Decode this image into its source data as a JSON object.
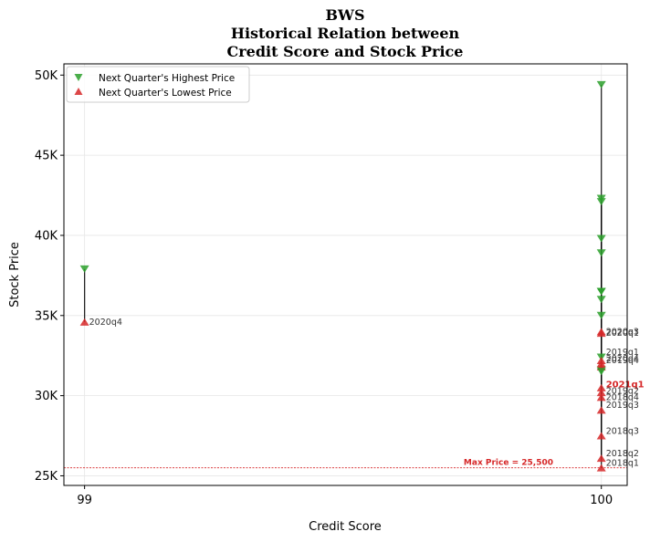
{
  "chart_data": {
    "type": "scatter",
    "title_lines": [
      "BWS",
      "Historical Relation between",
      "Credit Score and Stock Price"
    ],
    "xlabel": "Credit Score",
    "ylabel": "Stock Price",
    "x_ticks": [
      99,
      100
    ],
    "x_tick_labels": [
      "99",
      "100"
    ],
    "xlim": [
      98.96,
      100.05
    ],
    "ylim": [
      24400,
      50700
    ],
    "y_ticks": [
      25000,
      30000,
      35000,
      40000,
      45000,
      50000
    ],
    "y_tick_labels": [
      "25K",
      "30K",
      "35K",
      "40K",
      "45K",
      "50K"
    ],
    "grid": true,
    "legend_position": "top-left",
    "series": [
      {
        "name": "Next Quarter's Highest Price",
        "marker": "triangle-down",
        "color": "#2ca02c"
      },
      {
        "name": "Next Quarter's Lowest Price",
        "marker": "triangle-up",
        "color": "#d62728"
      }
    ],
    "points": [
      {
        "quarter": "2020q4",
        "x": 99,
        "high": 37900,
        "low": 34600
      },
      {
        "quarter": "2018q1",
        "x": 100,
        "high": 31600,
        "low": 25500
      },
      {
        "quarter": "2018q2",
        "x": 100,
        "high": 32400,
        "low": 26100
      },
      {
        "quarter": "2018q3",
        "x": 100,
        "high": 35000,
        "low": 27500
      },
      {
        "quarter": "2018q4",
        "x": 100,
        "high": 36000,
        "low": 29900
      },
      {
        "quarter": "2019q1",
        "x": 100,
        "high": 38900,
        "low": 31800
      },
      {
        "quarter": "2019q2",
        "x": 100,
        "high": 39800,
        "low": 30200
      },
      {
        "quarter": "2019q3",
        "x": 100,
        "high": 36500,
        "low": 29100
      },
      {
        "quarter": "2019q4",
        "x": 100,
        "high": 42100,
        "low": 32200
      },
      {
        "quarter": "2020q1",
        "x": 100,
        "high": 49400,
        "low": 33900
      },
      {
        "quarter": "2020q2",
        "x": 100,
        "high": 42300,
        "low": 32000
      },
      {
        "quarter": "2020q3",
        "x": 100,
        "high": 36500,
        "low": 34000
      },
      {
        "quarter": "2021q1",
        "x": 100,
        "high": 31500,
        "low": 30500
      }
    ],
    "point_labels": [
      {
        "text": "2020q4",
        "x": 99,
        "y": 34600,
        "highlight": false
      },
      {
        "text": "2020q3",
        "x": 100,
        "y": 34000,
        "highlight": false
      },
      {
        "text": "2020q1",
        "x": 100,
        "y": 33900,
        "highlight": false
      },
      {
        "text": "2019q1",
        "x": 100,
        "y": 32700,
        "highlight": false
      },
      {
        "text": "2020q4",
        "x": 100,
        "y": 32300,
        "highlight": false
      },
      {
        "text": "2019q4",
        "x": 100,
        "y": 32200,
        "highlight": false
      },
      {
        "text": "2021q1",
        "x": 100,
        "y": 30700,
        "highlight": true
      },
      {
        "text": "2019q2",
        "x": 100,
        "y": 30300,
        "highlight": false
      },
      {
        "text": "2018q4",
        "x": 100,
        "y": 29900,
        "highlight": false
      },
      {
        "text": "2019q3",
        "x": 100,
        "y": 29400,
        "highlight": false
      },
      {
        "text": "2018q3",
        "x": 100,
        "y": 27800,
        "highlight": false
      },
      {
        "text": "2018q2",
        "x": 100,
        "y": 26400,
        "highlight": false
      },
      {
        "text": "2018q1",
        "x": 100,
        "y": 25800,
        "highlight": false
      }
    ],
    "max_price_line": {
      "value": 25500,
      "label": "Max Price = 25,500",
      "color": "#d62728"
    }
  }
}
